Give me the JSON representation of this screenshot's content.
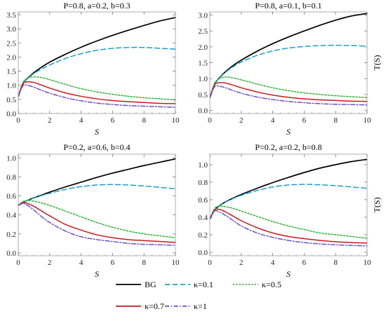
{
  "chart_data": [
    {
      "type": "line",
      "title": "P=0.8, a=0.2, b=0.3",
      "xlabel": "S",
      "ylabel": "",
      "xlim": [
        0,
        10
      ],
      "ylim": [
        0,
        3.6
      ],
      "xticks": [
        0,
        2,
        4,
        6,
        8,
        10
      ],
      "yticks": [
        0.0,
        0.5,
        1.0,
        1.5,
        2.0,
        2.5,
        3.0,
        3.5
      ],
      "ytick_labels": [
        "0.0",
        "0.5",
        "1.0",
        "1.5",
        "2.0",
        "2.5",
        "3.0",
        "3.5"
      ],
      "series": [
        {
          "name": "BG",
          "x": [
            0,
            0.3,
            0.6,
            1,
            1.5,
            2,
            3,
            4,
            5,
            6,
            7,
            8,
            9,
            10
          ],
          "y": [
            0.6,
            1.05,
            1.25,
            1.45,
            1.65,
            1.82,
            2.1,
            2.35,
            2.57,
            2.77,
            2.95,
            3.12,
            3.28,
            3.4
          ]
        },
        {
          "name": "κ=0.1",
          "x": [
            0,
            0.3,
            0.6,
            1,
            1.5,
            2,
            3,
            4,
            5,
            6,
            7,
            8,
            9,
            10
          ],
          "y": [
            0.6,
            1.05,
            1.24,
            1.42,
            1.58,
            1.72,
            1.95,
            2.12,
            2.24,
            2.31,
            2.34,
            2.34,
            2.31,
            2.28
          ]
        },
        {
          "name": "κ=0.5",
          "x": [
            0,
            0.3,
            0.6,
            1,
            1.5,
            2,
            3,
            4,
            5,
            6,
            7,
            8,
            9,
            10
          ],
          "y": [
            0.6,
            1.1,
            1.25,
            1.3,
            1.27,
            1.2,
            1.03,
            0.88,
            0.77,
            0.68,
            0.61,
            0.56,
            0.52,
            0.48
          ]
        },
        {
          "name": "κ=0.7",
          "x": [
            0,
            0.3,
            0.6,
            1,
            1.5,
            2,
            3,
            4,
            5,
            6,
            7,
            8,
            9,
            10
          ],
          "y": [
            0.6,
            1.05,
            1.12,
            1.1,
            1.0,
            0.9,
            0.73,
            0.61,
            0.52,
            0.46,
            0.42,
            0.39,
            0.36,
            0.35
          ]
        },
        {
          "name": "κ=1",
          "x": [
            0,
            0.3,
            0.6,
            1,
            1.5,
            2,
            3,
            4,
            5,
            6,
            7,
            8,
            9,
            10
          ],
          "y": [
            0.6,
            0.98,
            1.0,
            0.93,
            0.82,
            0.72,
            0.56,
            0.45,
            0.37,
            0.32,
            0.28,
            0.26,
            0.24,
            0.22
          ]
        }
      ]
    },
    {
      "type": "line",
      "title": "P=0.8, a=0.1, b=0.1",
      "xlabel": "S",
      "ylabel": "T(S)",
      "xlim": [
        0,
        10
      ],
      "ylim": [
        -0.1,
        3.1
      ],
      "xticks": [
        0,
        2,
        4,
        6,
        8,
        10
      ],
      "yticks": [
        0.0,
        0.5,
        1.0,
        1.5,
        2.0,
        2.5,
        3.0
      ],
      "ytick_labels": [
        "0.0",
        "0.5",
        "1.0",
        "1.5",
        "2.0",
        "2.5",
        "3.0"
      ],
      "series": [
        {
          "name": "BG",
          "x": [
            0,
            0.3,
            0.6,
            1,
            1.5,
            2,
            3,
            4,
            5,
            6,
            7,
            8,
            9,
            10
          ],
          "y": [
            0.4,
            0.82,
            1.02,
            1.22,
            1.42,
            1.58,
            1.86,
            2.1,
            2.31,
            2.5,
            2.68,
            2.84,
            2.97,
            3.05
          ]
        },
        {
          "name": "κ=0.1",
          "x": [
            0,
            0.3,
            0.6,
            1,
            1.5,
            2,
            3,
            4,
            5,
            6,
            7,
            8,
            9,
            10
          ],
          "y": [
            0.4,
            0.82,
            1.01,
            1.2,
            1.38,
            1.52,
            1.73,
            1.87,
            1.96,
            2.01,
            2.04,
            2.05,
            2.04,
            2.02
          ]
        },
        {
          "name": "κ=0.5",
          "x": [
            0,
            0.3,
            0.6,
            1,
            1.5,
            2,
            3,
            4,
            5,
            6,
            7,
            8,
            9,
            10
          ],
          "y": [
            0.4,
            0.85,
            1.0,
            1.05,
            1.02,
            0.96,
            0.83,
            0.71,
            0.62,
            0.55,
            0.5,
            0.46,
            0.43,
            0.4
          ]
        },
        {
          "name": "κ=0.7",
          "x": [
            0,
            0.3,
            0.6,
            1,
            1.5,
            2,
            3,
            4,
            5,
            6,
            7,
            8,
            9,
            10
          ],
          "y": [
            0.4,
            0.8,
            0.87,
            0.86,
            0.79,
            0.71,
            0.58,
            0.48,
            0.41,
            0.36,
            0.33,
            0.31,
            0.29,
            0.28
          ]
        },
        {
          "name": "κ=1",
          "x": [
            0,
            0.3,
            0.6,
            1,
            1.5,
            2,
            3,
            4,
            5,
            6,
            7,
            8,
            9,
            10
          ],
          "y": [
            0.4,
            0.74,
            0.76,
            0.71,
            0.62,
            0.54,
            0.42,
            0.34,
            0.28,
            0.24,
            0.21,
            0.19,
            0.18,
            0.17
          ]
        }
      ]
    },
    {
      "type": "line",
      "title": "P=0.2, a=0.6, b=0.4",
      "xlabel": "S",
      "ylabel": "",
      "xlim": [
        0,
        10
      ],
      "ylim": [
        -0.03,
        1.04
      ],
      "xticks": [
        0,
        2,
        4,
        6,
        8,
        10
      ],
      "yticks": [
        0.0,
        0.2,
        0.4,
        0.6,
        0.8,
        1.0
      ],
      "ytick_labels": [
        "0.0",
        "0.2",
        "0.4",
        "0.6",
        "0.8",
        "1.0"
      ],
      "series": [
        {
          "name": "BG",
          "x": [
            0,
            0.3,
            0.6,
            1,
            1.5,
            2,
            3,
            4,
            5,
            6,
            7,
            8,
            9,
            10
          ],
          "y": [
            0.5,
            0.53,
            0.555,
            0.58,
            0.61,
            0.64,
            0.695,
            0.745,
            0.795,
            0.84,
            0.88,
            0.92,
            0.955,
            0.99
          ]
        },
        {
          "name": "κ=0.1",
          "x": [
            0,
            0.3,
            0.6,
            1,
            1.5,
            2,
            3,
            4,
            5,
            6,
            7,
            8,
            9,
            10
          ],
          "y": [
            0.5,
            0.53,
            0.555,
            0.578,
            0.605,
            0.628,
            0.668,
            0.698,
            0.715,
            0.72,
            0.715,
            0.705,
            0.69,
            0.675
          ]
        },
        {
          "name": "κ=0.5",
          "x": [
            0,
            0.3,
            0.6,
            1,
            1.5,
            2,
            3,
            4,
            5,
            6,
            7,
            8,
            9,
            10
          ],
          "y": [
            0.5,
            0.54,
            0.55,
            0.545,
            0.525,
            0.5,
            0.44,
            0.38,
            0.32,
            0.27,
            0.23,
            0.2,
            0.18,
            0.16
          ]
        },
        {
          "name": "κ=0.7",
          "x": [
            0,
            0.3,
            0.6,
            1,
            1.5,
            2,
            3,
            4,
            5,
            6,
            7,
            8,
            9,
            10
          ],
          "y": [
            0.5,
            0.53,
            0.52,
            0.49,
            0.44,
            0.39,
            0.3,
            0.24,
            0.19,
            0.16,
            0.14,
            0.13,
            0.12,
            0.11
          ]
        },
        {
          "name": "κ=1",
          "x": [
            0,
            0.3,
            0.6,
            1,
            1.5,
            2,
            3,
            4,
            5,
            6,
            7,
            8,
            9,
            10
          ],
          "y": [
            0.5,
            0.52,
            0.5,
            0.45,
            0.38,
            0.32,
            0.23,
            0.17,
            0.14,
            0.12,
            0.1,
            0.09,
            0.085,
            0.08
          ]
        }
      ]
    },
    {
      "type": "line",
      "title": "P=0.2, a=0.2, b=0.8",
      "xlabel": "S",
      "ylabel": "T(S)",
      "xlim": [
        0,
        10
      ],
      "ylim": [
        -0.04,
        1.12
      ],
      "xticks": [
        0,
        2,
        4,
        6,
        8,
        10
      ],
      "yticks": [
        0.0,
        0.2,
        0.4,
        0.6,
        0.8,
        1.0
      ],
      "ytick_labels": [
        "0.0",
        "0.2",
        "0.4",
        "0.6",
        "0.8",
        "1.0"
      ],
      "series": [
        {
          "name": "BG",
          "x": [
            0,
            0.3,
            0.6,
            1,
            1.5,
            2,
            3,
            4,
            5,
            6,
            7,
            8,
            9,
            10
          ],
          "y": [
            0.38,
            0.48,
            0.53,
            0.575,
            0.62,
            0.66,
            0.73,
            0.795,
            0.855,
            0.91,
            0.96,
            1.0,
            1.035,
            1.06
          ]
        },
        {
          "name": "κ=0.1",
          "x": [
            0,
            0.3,
            0.6,
            1,
            1.5,
            2,
            3,
            4,
            5,
            6,
            7,
            8,
            9,
            10
          ],
          "y": [
            0.38,
            0.48,
            0.528,
            0.572,
            0.615,
            0.65,
            0.705,
            0.745,
            0.768,
            0.775,
            0.77,
            0.76,
            0.745,
            0.73
          ]
        },
        {
          "name": "κ=0.5",
          "x": [
            0,
            0.3,
            0.6,
            1,
            1.5,
            2,
            3,
            4,
            5,
            6,
            7,
            8,
            9,
            10
          ],
          "y": [
            0.38,
            0.5,
            0.525,
            0.52,
            0.5,
            0.47,
            0.41,
            0.35,
            0.3,
            0.26,
            0.22,
            0.2,
            0.18,
            0.16
          ]
        },
        {
          "name": "κ=0.7",
          "x": [
            0,
            0.3,
            0.6,
            1,
            1.5,
            2,
            3,
            4,
            5,
            6,
            7,
            8,
            9,
            10
          ],
          "y": [
            0.38,
            0.48,
            0.49,
            0.46,
            0.41,
            0.36,
            0.28,
            0.22,
            0.18,
            0.155,
            0.135,
            0.12,
            0.11,
            0.105
          ]
        },
        {
          "name": "κ=1",
          "x": [
            0,
            0.3,
            0.6,
            1,
            1.5,
            2,
            3,
            4,
            5,
            6,
            7,
            8,
            9,
            10
          ],
          "y": [
            0.38,
            0.47,
            0.46,
            0.42,
            0.36,
            0.3,
            0.22,
            0.17,
            0.135,
            0.11,
            0.095,
            0.085,
            0.078,
            0.072
          ]
        }
      ]
    }
  ],
  "legend": {
    "placement": "bottom",
    "entries": [
      {
        "label": "BG",
        "color": "#000000",
        "dash": "solid"
      },
      {
        "label": "κ=0.1",
        "color": "#1a9fcf",
        "dash": "dashed"
      },
      {
        "label": "κ=0.5",
        "color": "#33b23a",
        "dash": "dotted"
      },
      {
        "label": "κ=0.7",
        "color": "#c8191e",
        "dash": "solid"
      },
      {
        "label": "κ=1",
        "color": "#6a4fc8",
        "dash": "dashdot"
      }
    ]
  },
  "style": {
    "series_colors": [
      "#000000",
      "#1a9fcf",
      "#33b23a",
      "#c8191e",
      "#6a4fc8"
    ],
    "series_dashes": [
      "solid",
      "dashed",
      "dotted",
      "solid",
      "dashdot"
    ],
    "frame_color": "#999999"
  }
}
